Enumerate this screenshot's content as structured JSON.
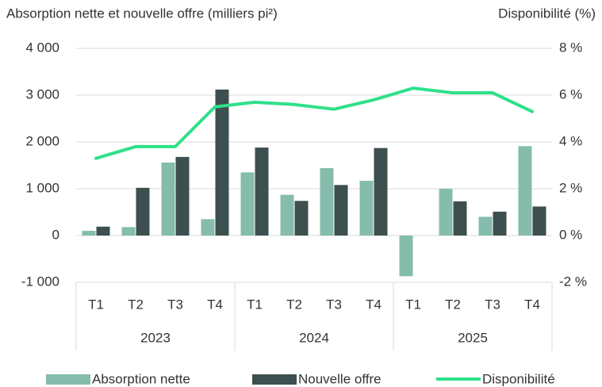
{
  "chart_data": {
    "type": "bar",
    "title": "Absorption nette et nouvelle offre (milliers pi²)",
    "y2_title": "Disponibilité (%)",
    "categories": [
      "T1",
      "T2",
      "T3",
      "T4",
      "T1",
      "T2",
      "T3",
      "T4",
      "T1",
      "T2",
      "T3",
      "T4"
    ],
    "groups": [
      "2023",
      "2024",
      "2025"
    ],
    "series": [
      {
        "name": "Absorption nette",
        "color": "#85bcab",
        "values": [
          100,
          180,
          1560,
          350,
          1350,
          870,
          1440,
          1170,
          -870,
          1000,
          400,
          1910
        ]
      },
      {
        "name": "Nouvelle offre",
        "color": "#3d4f4f",
        "values": [
          190,
          1020,
          1680,
          3120,
          1880,
          740,
          1080,
          1870,
          0,
          730,
          510,
          620
        ]
      },
      {
        "name": "Disponibilité",
        "color": "#2ee08a",
        "type": "line",
        "axis": "y2",
        "values": [
          3.3,
          3.8,
          3.8,
          5.5,
          5.7,
          5.6,
          5.4,
          5.8,
          6.3,
          6.1,
          6.1,
          5.3
        ]
      }
    ],
    "ylim": [
      -1000,
      4000
    ],
    "yticks": [
      {
        "value": -1000,
        "label": "-1 000"
      },
      0,
      {
        "value": 1000,
        "label": "1 000"
      },
      {
        "value": 2000,
        "label": "2 000"
      },
      {
        "value": 3000,
        "label": "3 000"
      },
      {
        "value": 4000,
        "label": "4 000"
      }
    ],
    "y2lim": [
      -2,
      8
    ],
    "y2ticks": [
      {
        "value": -2,
        "label": "-2 %"
      },
      {
        "value": 0,
        "label": "0 %"
      },
      {
        "value": 2,
        "label": "2 %"
      },
      {
        "value": 4,
        "label": "4 %"
      },
      {
        "value": 6,
        "label": "6 %"
      },
      {
        "value": 8,
        "label": "8 %"
      }
    ],
    "grid": true,
    "legend": "bottom"
  }
}
